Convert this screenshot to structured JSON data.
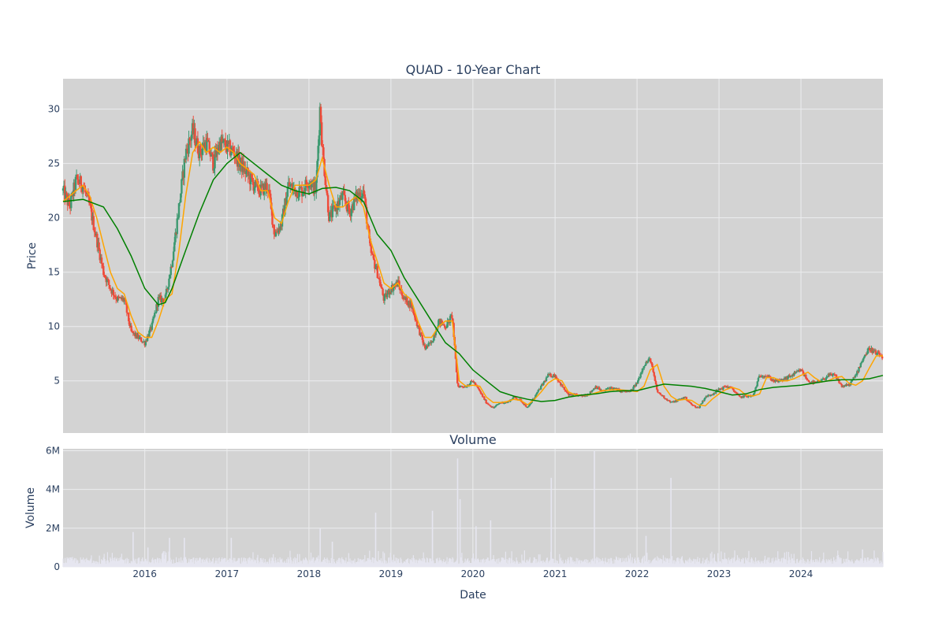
{
  "colors": {
    "plot_bg": "#d3d3d3",
    "grid": "#ecedef",
    "increasing": "#3d9970",
    "decreasing": "#ef4b3a",
    "ma_short": "#ffa500",
    "ma_long": "#008000",
    "volume": "#e6e6f0",
    "text": "#2a3f5f"
  },
  "chart_data": [
    {
      "type": "candlestick",
      "title": "QUAD - 10-Year Chart",
      "ylabel": "Price",
      "xlim": [
        "2015-01-02",
        "2024-12-31"
      ],
      "ylim": [
        0.2,
        32.8
      ],
      "yticks": [
        5,
        10,
        15,
        20,
        25,
        30
      ],
      "ytick_labels": [
        "5",
        "10",
        "15",
        "20",
        "25",
        "30"
      ],
      "x_ticks": [
        "2016",
        "2017",
        "2018",
        "2019",
        "2020",
        "2021",
        "2022",
        "2023",
        "2024"
      ],
      "grid": true,
      "series": [
        {
          "name": "",
          "role": "close",
          "x": [
            "2015-01-02",
            "2015-02-01",
            "2015-03-01",
            "2015-04-01",
            "2015-05-01",
            "2015-06-01",
            "2015-07-01",
            "2015-08-01",
            "2015-09-01",
            "2015-10-01",
            "2015-11-01",
            "2015-12-01",
            "2016-01-01",
            "2016-02-01",
            "2016-03-01",
            "2016-04-01",
            "2016-05-01",
            "2016-06-01",
            "2016-07-01",
            "2016-08-01",
            "2016-09-01",
            "2016-10-01",
            "2016-11-01",
            "2016-12-01",
            "2017-01-01",
            "2017-02-01",
            "2017-03-01",
            "2017-04-01",
            "2017-05-01",
            "2017-06-01",
            "2017-07-01",
            "2017-08-01",
            "2017-09-01",
            "2017-10-01",
            "2017-11-01",
            "2017-12-01",
            "2018-01-01",
            "2018-02-01",
            "2018-02-20",
            "2018-03-01",
            "2018-04-01",
            "2018-05-01",
            "2018-06-01",
            "2018-07-01",
            "2018-08-01",
            "2018-09-01",
            "2018-10-01",
            "2018-11-01",
            "2018-12-01",
            "2019-01-01",
            "2019-02-01",
            "2019-03-01",
            "2019-04-01",
            "2019-05-01",
            "2019-06-01",
            "2019-07-01",
            "2019-08-01",
            "2019-09-01",
            "2019-10-01",
            "2019-10-25",
            "2019-11-01",
            "2019-12-01",
            "2020-01-01",
            "2020-02-01",
            "2020-03-01",
            "2020-04-01",
            "2020-05-01",
            "2020-06-01",
            "2020-07-01",
            "2020-08-01",
            "2020-09-01",
            "2020-10-01",
            "2020-11-01",
            "2020-12-01",
            "2021-01-01",
            "2021-02-01",
            "2021-03-01",
            "2021-04-01",
            "2021-05-01",
            "2021-06-01",
            "2021-07-01",
            "2021-08-01",
            "2021-09-01",
            "2021-10-01",
            "2021-11-01",
            "2021-12-01",
            "2022-01-01",
            "2022-02-01",
            "2022-03-01",
            "2022-04-01",
            "2022-05-01",
            "2022-06-01",
            "2022-07-01",
            "2022-08-01",
            "2022-09-01",
            "2022-10-01",
            "2022-11-01",
            "2022-12-01",
            "2023-01-01",
            "2023-02-01",
            "2023-03-01",
            "2023-04-01",
            "2023-05-01",
            "2023-06-01",
            "2023-07-01",
            "2023-08-01",
            "2023-09-01",
            "2023-10-01",
            "2023-11-01",
            "2023-12-01",
            "2024-01-01",
            "2024-02-01",
            "2024-03-01",
            "2024-04-01",
            "2024-05-01",
            "2024-06-01",
            "2024-07-01",
            "2024-08-01",
            "2024-09-01",
            "2024-10-01",
            "2024-11-01",
            "2024-12-01",
            "2024-12-31"
          ],
          "values": [
            22.5,
            21.0,
            23.5,
            23.0,
            21.0,
            18.0,
            15.0,
            13.5,
            12.5,
            12.5,
            9.5,
            9.0,
            8.5,
            10.0,
            12.5,
            12.5,
            16.0,
            21.0,
            26.0,
            28.0,
            26.0,
            27.0,
            25.0,
            27.0,
            26.5,
            26.0,
            25.0,
            24.0,
            23.0,
            22.5,
            23.0,
            18.5,
            19.5,
            23.0,
            22.5,
            22.5,
            23.5,
            22.5,
            30.5,
            26.5,
            20.0,
            21.0,
            22.0,
            20.5,
            22.0,
            22.5,
            17.0,
            15.0,
            12.5,
            13.5,
            14.0,
            12.5,
            12.0,
            10.0,
            8.0,
            8.5,
            10.5,
            10.0,
            11.0,
            4.5,
            4.5,
            4.5,
            5.0,
            4.0,
            3.0,
            2.5,
            3.0,
            3.0,
            3.5,
            3.2,
            2.5,
            3.5,
            4.5,
            5.5,
            5.5,
            4.5,
            3.7,
            3.7,
            3.6,
            3.8,
            4.5,
            4.0,
            4.4,
            4.2,
            4.0,
            4.0,
            4.8,
            6.5,
            7.0,
            4.0,
            3.5,
            3.0,
            3.2,
            3.5,
            2.8,
            2.5,
            3.5,
            3.8,
            4.2,
            4.5,
            4.3,
            3.5,
            3.6,
            3.6,
            5.5,
            5.5,
            5.0,
            5.0,
            5.3,
            5.6,
            6.0,
            5.0,
            4.8,
            5.0,
            5.5,
            5.5,
            4.5,
            4.6,
            5.5,
            7.0,
            8.0,
            7.5,
            7.2
          ]
        },
        {
          "name": "",
          "role": "moving-average-short",
          "x": [
            "2015-01-02",
            "2015-03-01",
            "2015-04-01",
            "2015-05-01",
            "2015-06-01",
            "2015-07-01",
            "2015-08-01",
            "2015-09-01",
            "2015-10-01",
            "2015-11-01",
            "2015-12-01",
            "2016-01-01",
            "2016-02-01",
            "2016-03-01",
            "2016-04-01",
            "2016-05-01",
            "2016-06-01",
            "2016-07-01",
            "2016-08-01",
            "2016-09-01",
            "2016-10-01",
            "2016-11-01",
            "2016-12-01",
            "2017-01-01",
            "2017-02-01",
            "2017-03-01",
            "2017-04-01",
            "2017-05-01",
            "2017-06-01",
            "2017-07-01",
            "2017-08-01",
            "2017-09-01",
            "2017-10-01",
            "2017-11-01",
            "2017-12-01",
            "2018-01-01",
            "2018-02-01",
            "2018-03-01",
            "2018-04-01",
            "2018-05-01",
            "2018-06-01",
            "2018-07-01",
            "2018-08-01",
            "2018-09-01",
            "2018-10-01",
            "2018-11-01",
            "2018-12-01",
            "2019-01-01",
            "2019-02-01",
            "2019-03-01",
            "2019-04-01",
            "2019-05-01",
            "2019-06-01",
            "2019-07-01",
            "2019-08-01",
            "2019-09-01",
            "2019-10-01",
            "2019-11-01",
            "2019-12-01",
            "2020-01-01",
            "2020-02-01",
            "2020-03-01",
            "2020-04-01",
            "2020-05-01",
            "2020-06-01",
            "2020-07-01",
            "2020-08-01",
            "2020-09-01",
            "2020-10-01",
            "2020-11-01",
            "2020-12-01",
            "2021-01-01",
            "2021-02-01",
            "2021-03-01",
            "2021-04-01",
            "2021-06-01",
            "2021-08-01",
            "2021-10-01",
            "2021-12-01",
            "2022-01-01",
            "2022-02-01",
            "2022-03-01",
            "2022-04-01",
            "2022-05-01",
            "2022-06-01",
            "2022-07-01",
            "2022-08-01",
            "2022-09-01",
            "2022-10-01",
            "2022-11-01",
            "2022-12-01",
            "2023-01-01",
            "2023-02-01",
            "2023-03-01",
            "2023-04-01",
            "2023-05-01",
            "2023-06-01",
            "2023-07-01",
            "2023-08-01",
            "2023-09-01",
            "2023-10-01",
            "2023-11-01",
            "2023-12-01",
            "2024-01-01",
            "2024-02-01",
            "2024-03-01",
            "2024-04-01",
            "2024-05-01",
            "2024-06-01",
            "2024-07-01",
            "2024-08-01",
            "2024-09-01",
            "2024-10-01",
            "2024-11-01",
            "2024-12-01",
            "2024-12-31"
          ],
          "values": [
            21.5,
            22.5,
            23.0,
            22.0,
            20.0,
            17.5,
            15.0,
            13.5,
            13.0,
            11.0,
            9.5,
            9.0,
            9.0,
            10.5,
            12.5,
            13.0,
            17.0,
            22.0,
            26.0,
            27.0,
            26.0,
            26.5,
            26.0,
            26.5,
            26.0,
            25.0,
            24.5,
            24.0,
            22.5,
            22.5,
            20.0,
            19.5,
            21.5,
            23.0,
            23.0,
            23.0,
            23.5,
            25.5,
            23.0,
            21.0,
            21.0,
            21.5,
            22.0,
            21.0,
            18.0,
            16.0,
            14.0,
            13.5,
            14.0,
            13.0,
            12.5,
            10.5,
            9.0,
            9.0,
            10.0,
            10.5,
            10.5,
            5.0,
            4.5,
            4.6,
            4.5,
            3.5,
            3.0,
            3.0,
            3.1,
            3.3,
            3.2,
            2.8,
            3.3,
            4.0,
            4.8,
            5.2,
            5.0,
            4.0,
            3.7,
            3.7,
            4.1,
            4.2,
            4.1,
            4.0,
            4.5,
            6.0,
            6.5,
            4.5,
            3.6,
            3.2,
            3.3,
            3.2,
            2.8,
            2.7,
            3.3,
            3.8,
            4.2,
            4.4,
            4.2,
            3.7,
            3.6,
            3.8,
            5.3,
            5.3,
            5.0,
            5.0,
            5.2,
            5.5,
            5.8,
            5.3,
            4.9,
            5.0,
            5.3,
            5.4,
            4.8,
            4.6,
            5.0,
            6.2,
            7.3,
            7.3
          ]
        },
        {
          "name": "",
          "role": "moving-average-long",
          "x": [
            "2015-01-02",
            "2015-04-01",
            "2015-07-01",
            "2015-09-01",
            "2015-11-01",
            "2016-01-01",
            "2016-03-01",
            "2016-04-01",
            "2016-05-01",
            "2016-07-01",
            "2016-09-01",
            "2016-11-01",
            "2017-01-01",
            "2017-03-01",
            "2017-05-01",
            "2017-07-01",
            "2017-09-01",
            "2017-11-01",
            "2018-01-01",
            "2018-03-01",
            "2018-05-01",
            "2018-07-01",
            "2018-09-01",
            "2018-11-01",
            "2019-01-01",
            "2019-03-01",
            "2019-05-01",
            "2019-07-01",
            "2019-09-01",
            "2019-11-01",
            "2020-01-01",
            "2020-03-01",
            "2020-05-01",
            "2020-07-01",
            "2020-09-01",
            "2020-11-01",
            "2021-01-01",
            "2021-03-01",
            "2021-05-01",
            "2021-07-01",
            "2021-09-01",
            "2021-11-01",
            "2022-01-01",
            "2022-03-01",
            "2022-05-01",
            "2022-07-01",
            "2022-09-01",
            "2022-11-01",
            "2023-01-01",
            "2023-03-01",
            "2023-05-01",
            "2023-07-01",
            "2023-09-01",
            "2023-11-01",
            "2024-01-01",
            "2024-03-01",
            "2024-05-01",
            "2024-07-01",
            "2024-09-01",
            "2024-11-01",
            "2024-12-31"
          ],
          "values": [
            21.5,
            21.7,
            21.0,
            19.0,
            16.5,
            13.5,
            12.0,
            12.2,
            13.5,
            17.0,
            20.5,
            23.5,
            25.0,
            26.0,
            25.0,
            24.0,
            23.0,
            22.5,
            22.2,
            22.7,
            22.8,
            22.5,
            21.5,
            18.5,
            17.0,
            14.5,
            12.5,
            10.5,
            8.5,
            7.5,
            6.0,
            5.0,
            4.0,
            3.6,
            3.3,
            3.1,
            3.2,
            3.5,
            3.7,
            3.8,
            4.0,
            4.1,
            4.1,
            4.4,
            4.7,
            4.6,
            4.5,
            4.3,
            4.0,
            3.7,
            3.8,
            4.2,
            4.4,
            4.5,
            4.6,
            4.8,
            5.0,
            5.1,
            5.1,
            5.2,
            5.5
          ]
        }
      ]
    },
    {
      "type": "bar",
      "title": "Volume",
      "xlabel": "Date",
      "ylabel": "Volume",
      "ylim": [
        0,
        6100000
      ],
      "yticks": [
        0,
        2000000,
        4000000,
        6000000
      ],
      "ytick_labels": [
        "0",
        "2M",
        "4M",
        "6M"
      ],
      "grid": true,
      "spikes": {
        "x": [
          "2015-11-10",
          "2016-01-15",
          "2016-04-20",
          "2016-06-25",
          "2017-01-20",
          "2018-02-20",
          "2018-04-15",
          "2018-10-25",
          "2019-07-05",
          "2019-10-25",
          "2019-11-05",
          "2020-01-15",
          "2020-03-20",
          "2020-12-15",
          "2021-06-25",
          "2022-02-10",
          "2022-06-01",
          "2024-10-01"
        ],
        "values": [
          1800000,
          1000000,
          1500000,
          1500000,
          1500000,
          2000000,
          1300000,
          2800000,
          2900000,
          5600000,
          3500000,
          2100000,
          2400000,
          4600000,
          6000000,
          1600000,
          4600000,
          900000
        ]
      }
    }
  ]
}
